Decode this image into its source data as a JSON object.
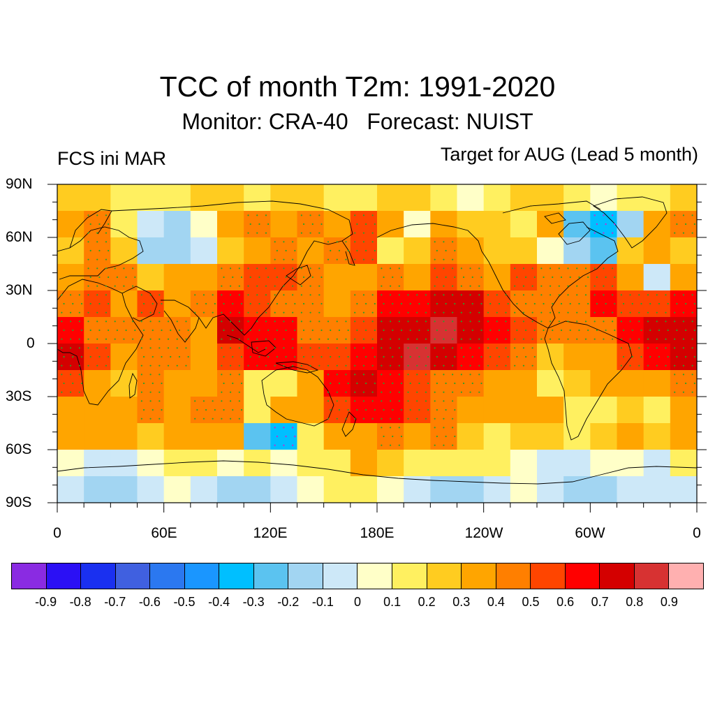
{
  "title": "TCC of month T2m: 1991-2020",
  "subtitle": "Monitor: CRA-40   Forecast: NUIST",
  "left_label": "FCS ini MAR",
  "right_label": "Target for AUG (Lead 5 month)",
  "lat_labels": [
    "90N",
    "60N",
    "30N",
    "0",
    "30S",
    "60S",
    "90S"
  ],
  "lon_labels": [
    "0",
    "60E",
    "120E",
    "180E",
    "120W",
    "60W",
    "0"
  ],
  "colorbar": {
    "colors": [
      "#8a2be2",
      "#2b10f5",
      "#1a30f0",
      "#4060e0",
      "#2b78f0",
      "#1a96ff",
      "#00bfff",
      "#5bc3f0",
      "#a2d5f2",
      "#cde8f8",
      "#ffffc8",
      "#fff060",
      "#ffcc20",
      "#ffa500",
      "#ff7f00",
      "#ff4500",
      "#ff0000",
      "#d40000",
      "#d73232",
      "#ffb0b0"
    ],
    "labels": [
      "-0.9",
      "-0.8",
      "-0.7",
      "-0.6",
      "-0.5",
      "-0.4",
      "-0.3",
      "-0.2",
      "-0.1",
      "0",
      "0.1",
      "0.2",
      "0.3",
      "0.4",
      "0.5",
      "0.6",
      "0.7",
      "0.8",
      "0.9"
    ]
  },
  "chart_data": {
    "type": "heatmap",
    "title": "TCC of month T2m: 1991-2020",
    "subtitle": "Monitor: CRA-40   Forecast: NUIST",
    "variable": "temporal correlation coefficient (TCC) of 2m temperature",
    "x_range_degrees_east": [
      0,
      360
    ],
    "y_range_degrees_north": [
      -90,
      90
    ],
    "x_ticks": [
      "0",
      "60E",
      "120E",
      "180E",
      "120W",
      "60W",
      "0"
    ],
    "y_ticks": [
      "90N",
      "60N",
      "30N",
      "0",
      "30S",
      "60S",
      "90S"
    ],
    "contour_levels": [
      -0.9,
      -0.8,
      -0.7,
      -0.6,
      -0.5,
      -0.4,
      -0.3,
      -0.2,
      -0.1,
      0,
      0.1,
      0.2,
      0.3,
      0.4,
      0.5,
      0.6,
      0.7,
      0.8,
      0.9
    ],
    "grid_resolution_degrees": 15,
    "grid_lat_centers": [
      82.5,
      67.5,
      52.5,
      37.5,
      22.5,
      7.5,
      -7.5,
      -22.5,
      -37.5,
      -52.5,
      -67.5,
      -82.5
    ],
    "grid_lon_start": 0,
    "values_approx": [
      [
        0.2,
        0.2,
        0.1,
        0.1,
        0.1,
        0.2,
        0.2,
        0.1,
        0.2,
        0.2,
        0.1,
        0.1,
        0.2,
        0.2,
        0.1,
        0.0,
        0.1,
        0.2,
        0.2,
        0.1,
        0.0,
        0.1,
        0.1,
        0.2
      ],
      [
        0.3,
        0.4,
        0.1,
        -0.1,
        -0.2,
        0.0,
        0.3,
        0.4,
        0.3,
        0.4,
        0.3,
        0.5,
        0.3,
        0.0,
        0.3,
        0.2,
        0.2,
        0.1,
        0.3,
        -0.3,
        -0.4,
        -0.2,
        0.3,
        0.4
      ],
      [
        0.2,
        0.4,
        0.2,
        -0.2,
        -0.2,
        -0.1,
        0.2,
        0.3,
        0.4,
        0.3,
        0.4,
        0.5,
        0.1,
        0.2,
        0.4,
        0.3,
        0.2,
        0.2,
        0.0,
        -0.2,
        -0.3,
        0.2,
        0.3,
        0.2
      ],
      [
        0.3,
        0.4,
        0.4,
        0.2,
        0.3,
        0.3,
        0.4,
        0.5,
        0.5,
        0.4,
        0.3,
        0.3,
        0.4,
        0.3,
        0.5,
        0.4,
        0.3,
        0.5,
        0.4,
        0.4,
        0.5,
        0.3,
        -0.1,
        0.3
      ],
      [
        0.4,
        0.5,
        0.3,
        0.5,
        0.3,
        0.4,
        0.6,
        0.5,
        0.4,
        0.4,
        0.3,
        0.4,
        0.6,
        0.6,
        0.7,
        0.7,
        0.5,
        0.4,
        0.4,
        0.4,
        0.6,
        0.5,
        0.5,
        0.6
      ],
      [
        0.6,
        0.4,
        0.4,
        0.4,
        0.4,
        0.3,
        0.7,
        0.6,
        0.6,
        0.4,
        0.4,
        0.5,
        0.7,
        0.7,
        0.8,
        0.7,
        0.6,
        0.5,
        0.4,
        0.4,
        0.4,
        0.6,
        0.7,
        0.7
      ],
      [
        0.7,
        0.5,
        0.3,
        0.4,
        0.4,
        0.3,
        0.5,
        0.6,
        0.6,
        0.5,
        0.5,
        0.6,
        0.7,
        0.8,
        0.7,
        0.6,
        0.5,
        0.4,
        0.2,
        0.3,
        0.3,
        0.5,
        0.6,
        0.7
      ],
      [
        0.5,
        0.3,
        0.2,
        0.4,
        0.3,
        0.3,
        0.4,
        0.1,
        0.1,
        0.3,
        0.6,
        0.7,
        0.6,
        0.5,
        0.4,
        0.4,
        0.3,
        0.3,
        0.1,
        0.2,
        0.3,
        0.3,
        0.3,
        0.4
      ],
      [
        0.3,
        0.3,
        0.3,
        0.4,
        0.3,
        0.4,
        0.4,
        0.1,
        0.3,
        0.3,
        0.5,
        0.6,
        0.6,
        0.5,
        0.4,
        0.3,
        0.3,
        0.3,
        0.3,
        0.1,
        0.1,
        0.2,
        0.1,
        0.3
      ],
      [
        0.3,
        0.3,
        0.3,
        0.2,
        0.3,
        0.3,
        0.3,
        -0.3,
        -0.4,
        0.1,
        0.3,
        0.3,
        0.4,
        0.3,
        0.4,
        0.2,
        0.1,
        0.2,
        0.2,
        0.1,
        0.2,
        0.3,
        0.2,
        0.3
      ],
      [
        0.0,
        -0.1,
        -0.1,
        0.0,
        0.1,
        0.1,
        0.0,
        0.1,
        0.0,
        0.1,
        0.1,
        0.3,
        0.2,
        0.1,
        0.1,
        0.1,
        0.1,
        0.0,
        -0.1,
        -0.1,
        0.0,
        0.0,
        -0.1,
        0.1
      ],
      [
        -0.1,
        -0.2,
        -0.2,
        -0.1,
        0.0,
        -0.1,
        -0.2,
        -0.2,
        -0.1,
        0.0,
        0.1,
        0.1,
        0.0,
        -0.1,
        -0.2,
        -0.2,
        -0.1,
        0.0,
        -0.1,
        -0.2,
        -0.2,
        -0.1,
        -0.1,
        -0.1
      ]
    ]
  }
}
